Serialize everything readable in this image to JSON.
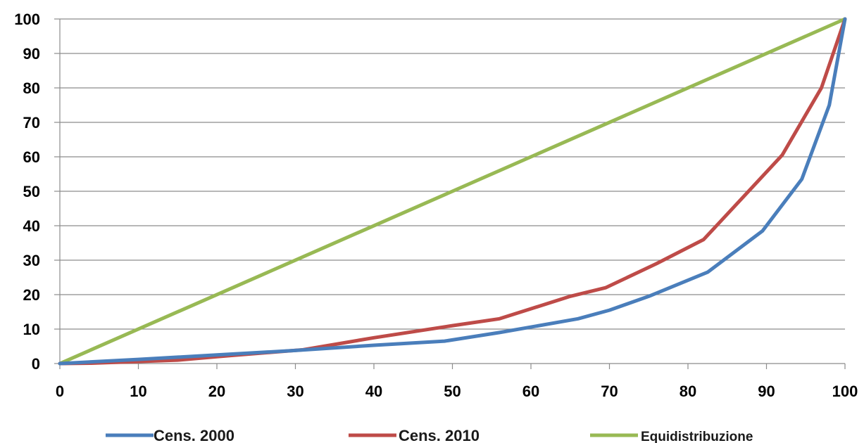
{
  "chart_data": {
    "type": "line",
    "title": "",
    "xlabel": "",
    "ylabel": "",
    "xlim": [
      0,
      100
    ],
    "ylim": [
      0,
      100
    ],
    "x_ticks": [
      "0",
      "10",
      "20",
      "30",
      "40",
      "50",
      "60",
      "70",
      "80",
      "90",
      "100"
    ],
    "y_ticks": [
      "0",
      "10",
      "20",
      "30",
      "40",
      "50",
      "60",
      "70",
      "80",
      "90",
      "100"
    ],
    "grid": "horizontal",
    "legend_position": "bottom",
    "series": [
      {
        "name": "Cens. 2000",
        "color": "#4a7ebb",
        "points": [
          [
            0,
            0
          ],
          [
            10,
            1.2
          ],
          [
            20,
            2.5
          ],
          [
            30,
            3.8
          ],
          [
            40,
            5.3
          ],
          [
            49,
            6.5
          ],
          [
            56,
            9
          ],
          [
            66,
            13
          ],
          [
            70,
            15.5
          ],
          [
            75,
            19.5
          ],
          [
            82.5,
            26.5
          ],
          [
            89.5,
            38.5
          ],
          [
            94.5,
            53.5
          ],
          [
            98,
            75
          ],
          [
            100,
            100
          ]
        ]
      },
      {
        "name": "Cens. 2010",
        "color": "#be4b48",
        "points": [
          [
            0,
            0
          ],
          [
            4,
            0.1
          ],
          [
            15,
            1
          ],
          [
            20,
            2
          ],
          [
            31,
            4
          ],
          [
            40,
            7.5
          ],
          [
            50,
            11
          ],
          [
            56,
            13
          ],
          [
            65,
            19.5
          ],
          [
            69.5,
            22
          ],
          [
            76,
            29
          ],
          [
            82,
            36
          ],
          [
            92,
            60.5
          ],
          [
            97,
            80
          ],
          [
            100,
            100
          ]
        ]
      },
      {
        "name": "Equidistribuzione",
        "color": "#98b954",
        "points": [
          [
            0,
            0
          ],
          [
            100,
            100
          ]
        ]
      }
    ]
  }
}
